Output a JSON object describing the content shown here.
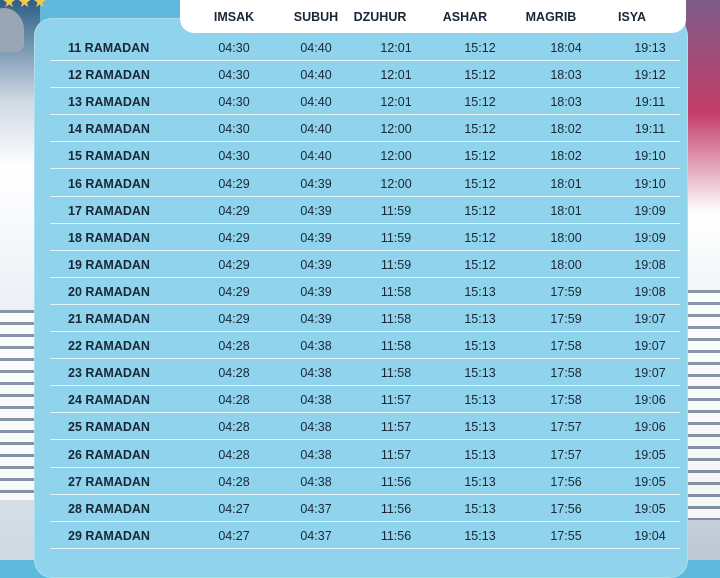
{
  "headers": {
    "imsak": "IMSAK",
    "subuh": "SUBUH",
    "dzuhur": "DZUHUR",
    "ashar": "ASHAR",
    "magrib": "MAGRIB",
    "isya": "ISYA"
  },
  "rows": [
    {
      "day": "11 RAMADAN",
      "imsak": "04:30",
      "subuh": "04:40",
      "dzuhur": "12:01",
      "ashar": "15:12",
      "magrib": "18:04",
      "isya": "19:13"
    },
    {
      "day": "12 RAMADAN",
      "imsak": "04:30",
      "subuh": "04:40",
      "dzuhur": "12:01",
      "ashar": "15:12",
      "magrib": "18:03",
      "isya": "19:12"
    },
    {
      "day": "13 RAMADAN",
      "imsak": "04:30",
      "subuh": "04:40",
      "dzuhur": "12:01",
      "ashar": "15:12",
      "magrib": "18:03",
      "isya": "19:11"
    },
    {
      "day": "14 RAMADAN",
      "imsak": "04:30",
      "subuh": "04:40",
      "dzuhur": "12:00",
      "ashar": "15:12",
      "magrib": "18:02",
      "isya": "19:11"
    },
    {
      "day": "15 RAMADAN",
      "imsak": "04:30",
      "subuh": "04:40",
      "dzuhur": "12:00",
      "ashar": "15:12",
      "magrib": "18:02",
      "isya": "19:10"
    },
    {
      "day": "16 RAMADAN",
      "imsak": "04:29",
      "subuh": "04:39",
      "dzuhur": "12:00",
      "ashar": "15:12",
      "magrib": "18:01",
      "isya": "19:10"
    },
    {
      "day": "17 RAMADAN",
      "imsak": "04:29",
      "subuh": "04:39",
      "dzuhur": "11:59",
      "ashar": "15:12",
      "magrib": "18:01",
      "isya": "19:09"
    },
    {
      "day": "18 RAMADAN",
      "imsak": "04:29",
      "subuh": "04:39",
      "dzuhur": "11:59",
      "ashar": "15:12",
      "magrib": "18:00",
      "isya": "19:09"
    },
    {
      "day": "19 RAMADAN",
      "imsak": "04:29",
      "subuh": "04:39",
      "dzuhur": "11:59",
      "ashar": "15:12",
      "magrib": "18:00",
      "isya": "19:08"
    },
    {
      "day": "20 RAMADAN",
      "imsak": "04:29",
      "subuh": "04:39",
      "dzuhur": "11:58",
      "ashar": "15:13",
      "magrib": "17:59",
      "isya": "19:08"
    },
    {
      "day": "21 RAMADAN",
      "imsak": "04:29",
      "subuh": "04:39",
      "dzuhur": "11:58",
      "ashar": "15:13",
      "magrib": "17:59",
      "isya": "19:07"
    },
    {
      "day": "22 RAMADAN",
      "imsak": "04:28",
      "subuh": "04:38",
      "dzuhur": "11:58",
      "ashar": "15:13",
      "magrib": "17:58",
      "isya": "19:07"
    },
    {
      "day": "23 RAMADAN",
      "imsak": "04:28",
      "subuh": "04:38",
      "dzuhur": "11:58",
      "ashar": "15:13",
      "magrib": "17:58",
      "isya": "19:07"
    },
    {
      "day": "24 RAMADAN",
      "imsak": "04:28",
      "subuh": "04:38",
      "dzuhur": "11:57",
      "ashar": "15:13",
      "magrib": "17:58",
      "isya": "19:06"
    },
    {
      "day": "25 RAMADAN",
      "imsak": "04:28",
      "subuh": "04:38",
      "dzuhur": "11:57",
      "ashar": "15:13",
      "magrib": "17:57",
      "isya": "19:06"
    },
    {
      "day": "26 RAMADAN",
      "imsak": "04:28",
      "subuh": "04:38",
      "dzuhur": "11:57",
      "ashar": "15:13",
      "magrib": "17:57",
      "isya": "19:05"
    },
    {
      "day": "27 RAMADAN",
      "imsak": "04:28",
      "subuh": "04:38",
      "dzuhur": "11:56",
      "ashar": "15:13",
      "magrib": "17:56",
      "isya": "19:05"
    },
    {
      "day": "28 RAMADAN",
      "imsak": "04:27",
      "subuh": "04:37",
      "dzuhur": "11:56",
      "ashar": "15:13",
      "magrib": "17:56",
      "isya": "19:05"
    },
    {
      "day": "29 RAMADAN",
      "imsak": "04:27",
      "subuh": "04:37",
      "dzuhur": "11:56",
      "ashar": "15:13",
      "magrib": "17:55",
      "isya": "19:04"
    }
  ],
  "colors": {
    "background": "#5fb9dc",
    "card": "#8fd3ec",
    "header_pill": "#ffffff",
    "text": "#1a2737",
    "star": "#f2c94c"
  }
}
